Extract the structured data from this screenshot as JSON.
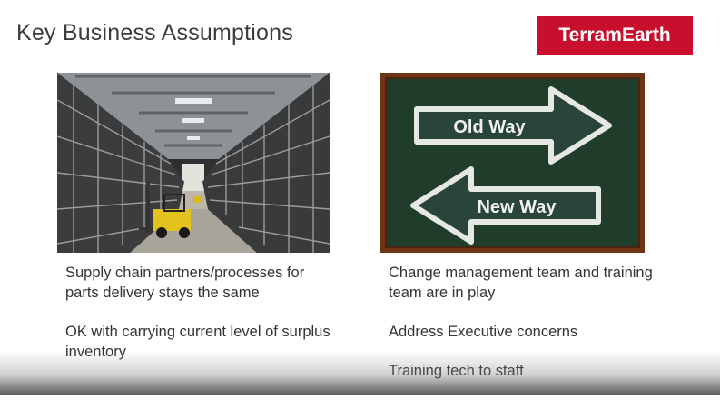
{
  "slide": {
    "title": "Key Business Assumptions",
    "logo_text": "TerramEarth",
    "left_image": "warehouse-forklift-image",
    "right_image": "chalkboard-arrows-image",
    "board": {
      "arrow_top": "Old Way",
      "arrow_bottom": "New Way"
    },
    "left_bullets": [
      "Supply chain partners/processes for parts delivery stays the same",
      "OK with carrying current level of surplus inventory"
    ],
    "right_bullets": [
      "Change management team and training team are in play",
      "Address Executive  concerns",
      "Training tech to staff"
    ],
    "colors": {
      "logo_bg": "#c8102e",
      "board_green": "#1f3d2a",
      "board_frame": "#7a3b16"
    }
  }
}
